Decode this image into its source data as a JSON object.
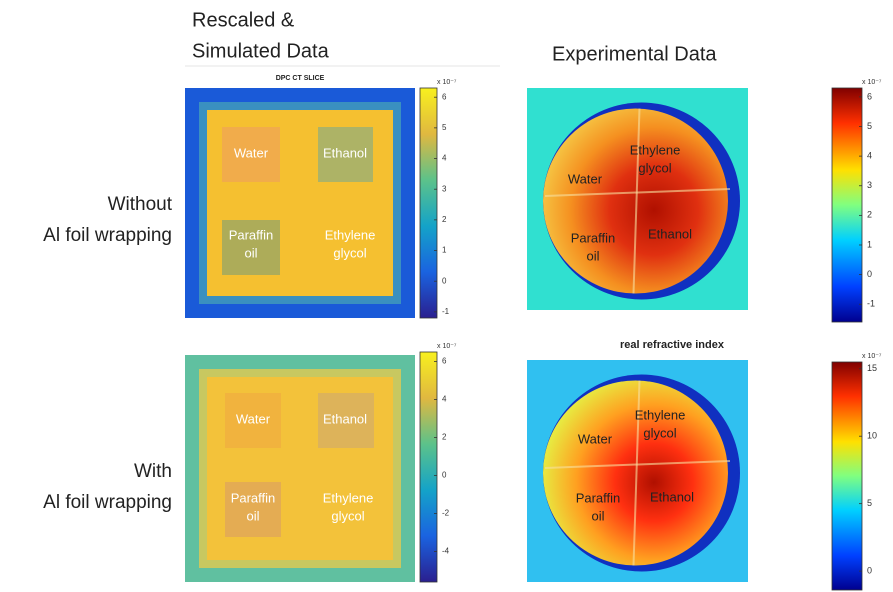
{
  "headings": {
    "simulated": [
      "Rescaled &",
      "Simulated Data"
    ],
    "experimental": "Experimental Data"
  },
  "rows": [
    {
      "label": [
        "Without",
        "Al foil wrapping"
      ]
    },
    {
      "label": [
        "With",
        "Al foil wrapping"
      ]
    }
  ],
  "panels": [
    {
      "kind": "simulated",
      "title": "DPC CT SLICE",
      "regions": [
        {
          "label": [
            "Water"
          ]
        },
        {
          "label": [
            "Ethanol"
          ]
        },
        {
          "label": [
            "Paraffin",
            "oil"
          ]
        },
        {
          "label": [
            "Ethylene",
            "glycol"
          ]
        }
      ],
      "colorbar": {
        "exponent": "x 10⁻⁷",
        "lim": [
          -1.2,
          6.3
        ],
        "ticks": [
          6,
          5,
          4,
          3,
          2,
          1,
          0,
          -1
        ]
      }
    },
    {
      "kind": "simulated",
      "regions": [
        {
          "label": [
            "Water"
          ]
        },
        {
          "label": [
            "Ethanol"
          ]
        },
        {
          "label": [
            "Paraffin",
            "oil"
          ]
        },
        {
          "label": [
            "Ethylene",
            "glycol"
          ]
        }
      ],
      "colorbar": {
        "exponent": "x 10⁻⁷",
        "lim": [
          -5.6,
          6.5
        ],
        "ticks": [
          6,
          4,
          2,
          0,
          -2,
          -4
        ]
      }
    },
    {
      "kind": "experimental",
      "regions": [
        {
          "label": [
            "Water"
          ]
        },
        {
          "label": [
            "Ethylene",
            "glycol"
          ]
        },
        {
          "label": [
            "Paraffin",
            "oil"
          ]
        },
        {
          "label": [
            "Ethanol"
          ]
        }
      ],
      "colorbar": {
        "exponent": "x 10⁻⁷",
        "lim": [
          -1.6,
          6.3
        ],
        "ticks": [
          6,
          5,
          4,
          3,
          2,
          1,
          0,
          -1
        ]
      }
    },
    {
      "kind": "experimental",
      "title": "real refractive index",
      "regions": [
        {
          "label": [
            "Water"
          ]
        },
        {
          "label": [
            "Ethylene",
            "glycol"
          ]
        },
        {
          "label": [
            "Paraffin",
            "oil"
          ]
        },
        {
          "label": [
            "Ethanol"
          ]
        }
      ],
      "colorbar": {
        "exponent": "x 10⁻⁷",
        "lim": [
          -1.4,
          15.5
        ],
        "ticks": [
          15,
          10,
          5,
          0
        ]
      }
    }
  ]
}
